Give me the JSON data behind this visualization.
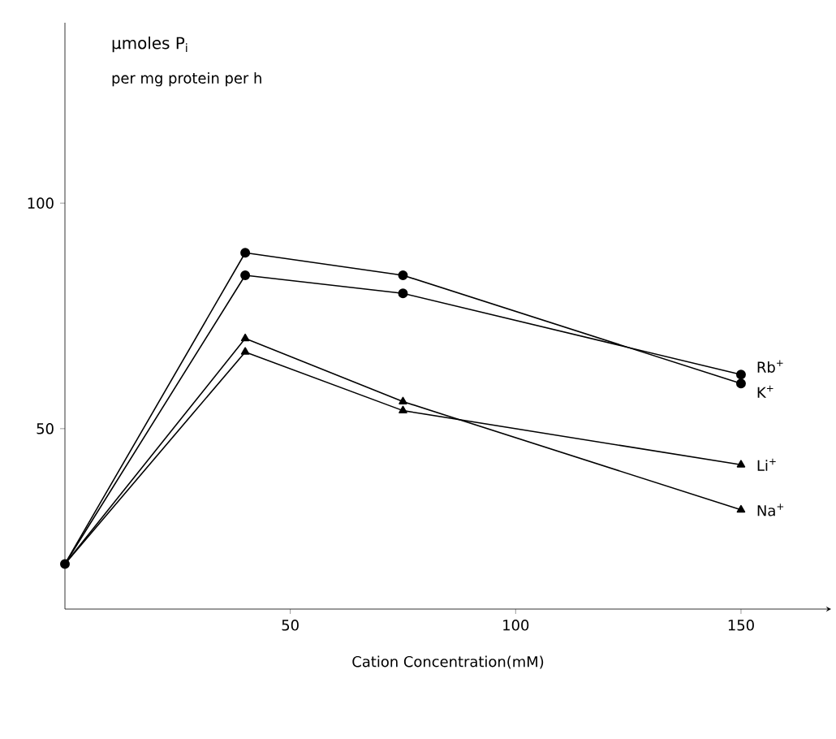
{
  "chart_data": {
    "type": "line",
    "xlabel": "Cation Concentration(mM)",
    "ylabel": "μmoles P$_{i}$",
    "annotations": [
      "per mg protein per h"
    ],
    "xlim": [
      0,
      170
    ],
    "ylim": [
      10,
      140
    ],
    "xticks": [
      50,
      100,
      150
    ],
    "yticks": [
      50,
      100
    ],
    "grid": false,
    "legend": false,
    "line_style": "solid",
    "series": [
      {
        "name": "Rb$^{+}$",
        "color": "#000000",
        "marker": "circle",
        "x": [
          0,
          40,
          75,
          150
        ],
        "values": [
          20,
          84,
          80,
          62
        ]
      },
      {
        "name": "K$^{+}$",
        "color": "#000000",
        "marker": "circle",
        "x": [
          0,
          40,
          75,
          150
        ],
        "values": [
          20,
          89,
          84,
          60
        ]
      },
      {
        "name": "Li$^{+}$",
        "color": "#000000",
        "marker": "triangle",
        "x": [
          0,
          40,
          75,
          150
        ],
        "values": [
          20,
          67,
          54,
          42
        ]
      },
      {
        "name": "Na$^{+}$",
        "color": "#000000",
        "marker": "triangle",
        "x": [
          0,
          40,
          75,
          150
        ],
        "values": [
          20,
          70,
          56,
          32
        ]
      }
    ]
  }
}
